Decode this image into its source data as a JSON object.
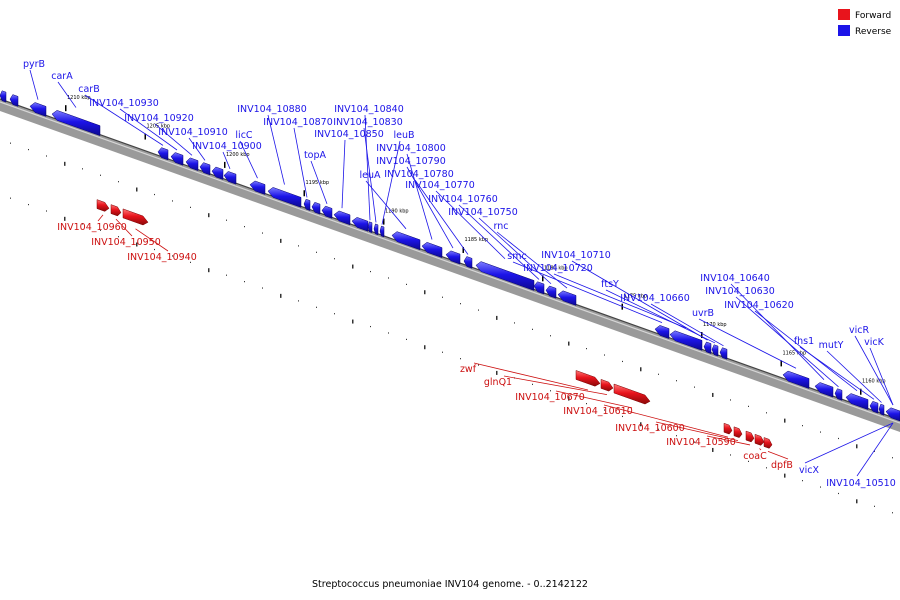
{
  "title": "Streptococcus pneumoniae INV104 genome. - 0..2142122",
  "legend": [
    {
      "label": "Forward",
      "color": "#e8141c"
    },
    {
      "label": "Reverse",
      "color": "#1c14e8"
    }
  ],
  "colors": {
    "forward": "#e8141c",
    "reverse": "#1c14e8",
    "backbone": "#7a7a7a"
  },
  "genome": {
    "ticks": [
      {
        "kbp": 1210,
        "label": "1210 kbp"
      },
      {
        "kbp": 1205,
        "label": "1205 kbp"
      },
      {
        "kbp": 1200,
        "label": "1200 kbp"
      },
      {
        "kbp": 1195,
        "label": "1195 kbp"
      },
      {
        "kbp": 1190,
        "label": "1190 kbp"
      },
      {
        "kbp": 1185,
        "label": "1185 kbp"
      },
      {
        "kbp": 1180,
        "label": "1180 kbp"
      },
      {
        "kbp": 1175,
        "label": "1175 kbp"
      },
      {
        "kbp": 1170,
        "label": "1170 kbp"
      },
      {
        "kbp": 1165,
        "label": "1165 kbp"
      },
      {
        "kbp": 1160,
        "label": "1160 kbp"
      }
    ]
  },
  "reverse_genes": [
    "pyrB",
    "carA",
    "carB",
    "INV104_10930",
    "INV104_10920",
    "INV104_10910",
    "INV104_10900",
    "licC",
    "INV104_10880",
    "INV104_10870",
    "topA",
    "INV104_10850",
    "INV104_10840",
    "INV104_10830",
    "leuB",
    "leuA",
    "INV104_10800",
    "INV104_10790",
    "INV104_10780",
    "INV104_10770",
    "INV104_10760",
    "INV104_10750",
    "rnc",
    "smc",
    "INV104_10720",
    "INV104_10710",
    "ftsY",
    "INV104_10660",
    "uvrB",
    "INV104_10640",
    "INV104_10630",
    "INV104_10620",
    "fhs1",
    "mutY",
    "vicR",
    "vicK",
    "vicX",
    "INV104_10510"
  ],
  "forward_genes": [
    "INV104_10960",
    "INV104_10950",
    "INV104_10940",
    "zwf",
    "glnQ1",
    "INV104_10670",
    "INV104_10610",
    "INV104_10600",
    "INV104_10590",
    "coaC",
    "dpfB"
  ]
}
